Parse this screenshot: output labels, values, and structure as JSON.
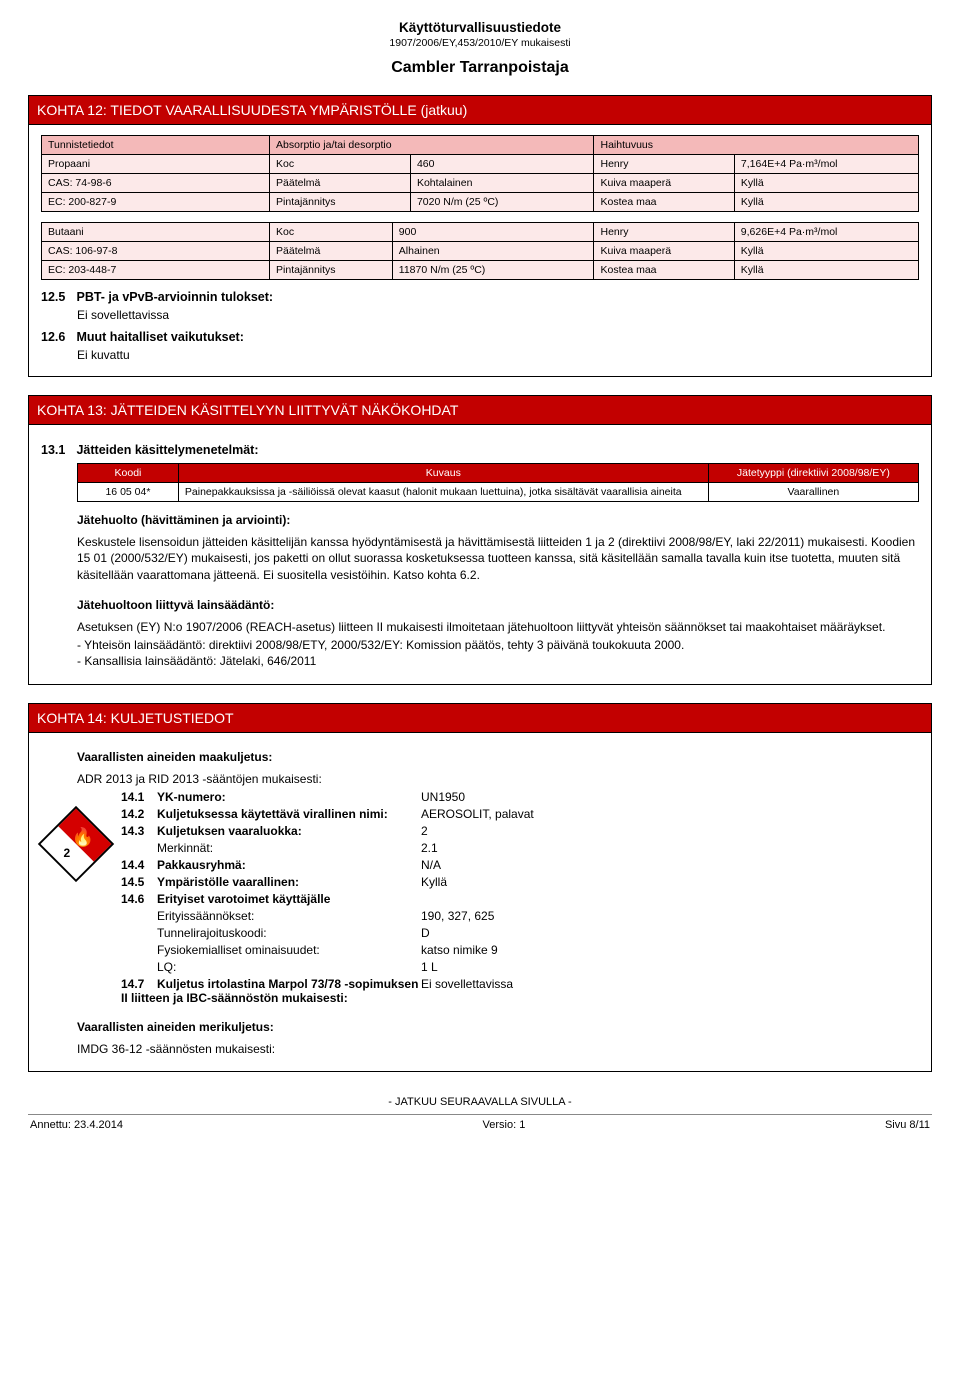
{
  "header": {
    "title1": "Käyttöturvallisuustiedote",
    "title2": "1907/2006/EY,453/2010/EY mukaisesti",
    "product": "Cambler Tarranpoistaja"
  },
  "s12": {
    "bar": "KOHTA 12: TIEDOT VAARALLISUUDESTA YMPÄRISTÖLLE (jatkuu)",
    "tbl_headers": {
      "c1": "Tunnistetiedot",
      "c2": "Absorptio ja/tai desorptio",
      "c3": "Haihtuvuus"
    },
    "blocks": [
      {
        "rows": [
          [
            "Propaani",
            "Koc",
            "460",
            "Henry",
            "7,164E+4 Pa·m³/mol"
          ],
          [
            "CAS: 74-98-6",
            "Päätelmä",
            "Kohtalainen",
            "Kuiva maaperä",
            "Kyllä"
          ],
          [
            "EC: 200-827-9",
            "Pintajännitys",
            "7020 N/m  (25 ºC)",
            "Kostea maa",
            "Kyllä"
          ]
        ]
      },
      {
        "rows": [
          [
            "Butaani",
            "Koc",
            "900",
            "Henry",
            "9,626E+4 Pa·m³/mol"
          ],
          [
            "CAS: 106-97-8",
            "Päätelmä",
            "Alhainen",
            "Kuiva maaperä",
            "Kyllä"
          ],
          [
            "EC: 203-448-7",
            "Pintajännitys",
            "11870 N/m  (25 ºC)",
            "Kostea maa",
            "Kyllä"
          ]
        ]
      }
    ],
    "s125_num": "12.5",
    "s125_title": "PBT- ja vPvB-arvioinnin tulokset:",
    "s125_text": "Ei sovellettavissa",
    "s126_num": "12.6",
    "s126_title": "Muut haitalliset vaikutukset:",
    "s126_text": "Ei kuvattu"
  },
  "s13": {
    "bar": "KOHTA 13: JÄTTEIDEN KÄSITTELYYN LIITTYVÄT NÄKÖKOHDAT",
    "s131_num": "13.1",
    "s131_title": "Jätteiden käsittelymenetelmät:",
    "tbl": {
      "cols": [
        "Koodi",
        "Kuvaus",
        "Jätetyyppi (direktiivi 2008/98/EY)"
      ],
      "row": [
        "16 05 04*",
        "Painepakkauksissa ja -säiliöissä olevat kaasut (halonit mukaan luettuina), jotka sisältävät vaarallisia aineita",
        "Vaarallinen"
      ]
    },
    "h1": "Jätehuolto (hävittäminen ja arviointi):",
    "p1": "Keskustele lisensoidun jätteiden käsittelijän kanssa hyödyntämisestä ja hävittämisestä liitteiden 1 ja 2 (direktiivi 2008/98/EY, laki 22/2011) mukaisesti. Koodien 15 01  (2000/532/EY) mukaisesti, jos paketti on ollut suorassa kosketuksessa tuotteen kanssa, sitä käsitellään samalla tavalla kuin itse tuotetta, muuten sitä käsitellään vaarattomana jätteenä. Ei suositella vesistöihin. Katso kohta 6.2.",
    "h2": "Jätehuoltoon liittyvä lainsäädäntö:",
    "p2": "Asetuksen (EY) N:o 1907/2006 (REACH-asetus) liitteen II mukaisesti ilmoitetaan jätehuoltoon liittyvät yhteisön säännökset tai maakohtaiset määräykset.",
    "p3a": "- Yhteisön lainsäädäntö: direktiivi 2008/98/ETY, 2000/532/EY: Komission päätös, tehty 3 päivänä toukokuuta 2000.",
    "p3b": "- Kansallisia lainsäädäntö: Jätelaki, 646/2011"
  },
  "s14": {
    "bar": "KOHTA 14: KULJETUSTIEDOT",
    "land_h": "Vaarallisten aineiden maakuljetus:",
    "land_sub": "ADR 2013 ja RID 2013 -sääntöjen mukaisesti:",
    "items": [
      {
        "idx": "14.1",
        "k": "YK-numero:",
        "v": "UN1950",
        "bold": true
      },
      {
        "idx": "14.2",
        "k": "Kuljetuksessa käytettävä virallinen nimi:",
        "v": "AEROSOLIT, palavat",
        "bold": true
      },
      {
        "idx": "14.3",
        "k": "Kuljetuksen vaaraluokka:",
        "v": "2",
        "bold": true
      },
      {
        "idx": "",
        "k": "Merkinnät:",
        "v": "2.1",
        "bold": false
      },
      {
        "idx": "14.4",
        "k": "Pakkausryhmä:",
        "v": "N/A",
        "bold": true
      },
      {
        "idx": "14.5",
        "k": "Ympäristölle vaarallinen:",
        "v": "Kyllä",
        "bold": true
      },
      {
        "idx": "14.6",
        "k": "Erityiset varotoimet käyttäjälle",
        "v": "",
        "bold": true
      },
      {
        "idx": "",
        "k": "Erityissäännökset:",
        "v": "190, 327, 625",
        "bold": false
      },
      {
        "idx": "",
        "k": "Tunnelirajoituskoodi:",
        "v": "D",
        "bold": false
      },
      {
        "idx": "",
        "k": "Fysiokemialliset ominaisuudet:",
        "v": "katso nimike 9",
        "bold": false
      },
      {
        "idx": "",
        "k": "LQ:",
        "v": "1 L",
        "bold": false
      },
      {
        "idx": "14.7",
        "k": "Kuljetus irtolastina Marpol 73/78 -sopimuksen II liitteen ja IBC-säännöstön mukaisesti:",
        "v": "Ei sovellettavissa",
        "bold": true
      }
    ],
    "sea_h": "Vaarallisten aineiden merikuljetus:",
    "sea_sub": "IMDG 36-12 -säännösten mukaisesti:"
  },
  "footer": {
    "cont": "- JATKUU SEURAAVALLA SIVULLA -",
    "left": "Annettu: 23.4.2014",
    "mid": "Versio: 1",
    "right": "Sivu 8/11"
  },
  "style": {
    "red": "#c20000",
    "pink_head": "#f4b9b9",
    "pink_cell": "#fce9e9"
  }
}
